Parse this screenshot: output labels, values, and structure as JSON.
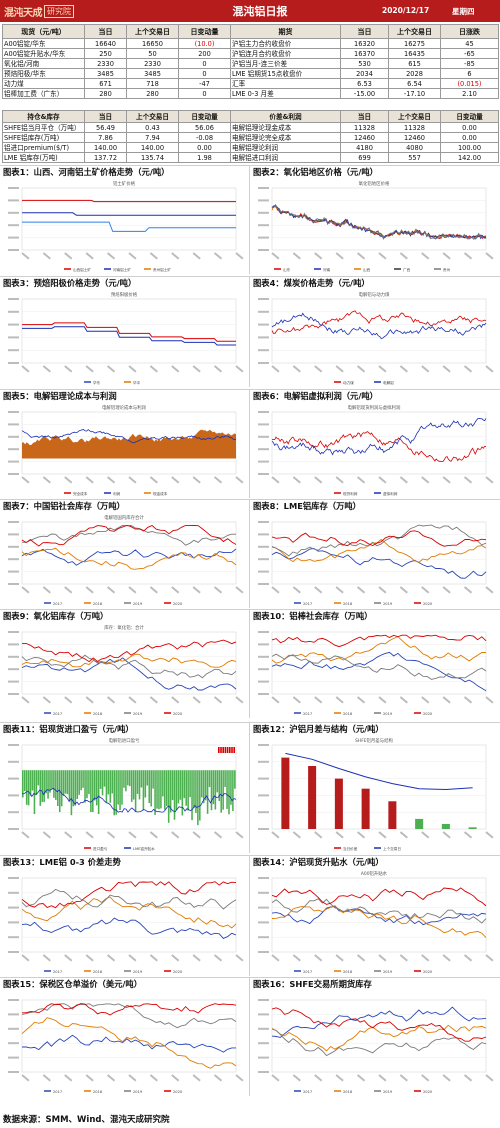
{
  "header": {
    "logo_text": "混沌天成",
    "logo_badge": "研究院",
    "title": "混沌铝日报",
    "date": "2020/12/17",
    "weekday": "星期四"
  },
  "spot_table": {
    "headers": [
      "现货（元/吨）",
      "当日",
      "上个交易日",
      "日变动量",
      "期货",
      "当日",
      "上个交易日",
      "日涨跌"
    ],
    "rows": [
      [
        "A00铝锭/华东",
        "16640",
        "16650",
        "(10.0)",
        "沪铝主力合约收盘价",
        "16320",
        "16275",
        "45"
      ],
      [
        "A00铝锭升贴水/华东",
        "250",
        "50",
        "200",
        "沪铝连月合约收盘价",
        "16370",
        "16435",
        "-65"
      ],
      [
        "氧化铝/河南",
        "2330",
        "2330",
        "0",
        "沪铝当月-连三价差",
        "530",
        "615",
        "-85"
      ],
      [
        "预焙阳极/华东",
        "3485",
        "3485",
        "0",
        "LME 铝期货15点收盘价",
        "2034",
        "2028",
        "6"
      ],
      [
        "动力煤",
        "671",
        "718",
        "-47",
        "汇率",
        "6.53",
        "6.54",
        "(0.015)"
      ],
      [
        "铝棒加工费（广东）",
        "280",
        "280",
        "0",
        "LME 0-3 月差",
        "-15.00",
        "-17.10",
        "2.10"
      ]
    ]
  },
  "stock_table": {
    "headers": [
      "持仓&库存",
      "当日",
      "上个交易日",
      "日变动量",
      "价差&利润",
      "当日",
      "上个交易日",
      "日变动量"
    ],
    "rows": [
      [
        "SHFE铝当月平仓（万吨）",
        "56.49",
        "0.43",
        "56.06",
        "电解铝理论现金成本",
        "11328",
        "11328",
        "0.00"
      ],
      [
        "SHFE铝库存(万吨)",
        "7.86",
        "7.94",
        "-0.08",
        "电解铝理论完全成本",
        "12460",
        "12460",
        "0.00"
      ],
      [
        "铝进口premium($/T)",
        "140.00",
        "140.00",
        "0.00",
        "电解铝理论利润",
        "4180",
        "4080",
        "100.00"
      ],
      [
        "LME 铝库存(万吨)",
        "137.72",
        "135.74",
        "1.98",
        "电解铝进口利润",
        "699",
        "557",
        "142.00"
      ]
    ]
  },
  "charts": [
    {
      "label": "图表1：山西、河南铝土矿价格走势（元/吨）",
      "subtitle": "铝土矿价格",
      "legend": [
        "山西铝土矿",
        "河南铝土矿",
        "贵州铝土矿"
      ]
    },
    {
      "label": "图表2：氧化铝地区价格（元/吨）",
      "subtitle": "氧化铝地区价格",
      "legend": [
        "山东",
        "河南",
        "山西",
        "广西",
        "贵州"
      ]
    },
    {
      "label": "图表3：预焙阳极价格走势（元/吨）",
      "subtitle": "预焙阳极价格",
      "legend": [
        "华东",
        "华中"
      ]
    },
    {
      "label": "图表4：煤炭价格走势（元/吨）",
      "subtitle": "电解铝与动力煤",
      "legend": [
        "动力煤",
        "电解铝"
      ]
    },
    {
      "label": "图表5：电解铝理论成本与利润",
      "subtitle": "电解铝理论成本与利润",
      "legend": [
        "完全成本",
        "利润",
        "现金成本"
      ]
    },
    {
      "label": "图表6：电解铝虚拟利润（元/吨）",
      "subtitle": "电解铝现货利润与虚拟利润",
      "legend": [
        "现货利润",
        "虚拟利润"
      ]
    },
    {
      "label": "图表7：中国铝社会库存（万吨）",
      "subtitle": "电解铝国内库存合计",
      "legend": [
        "2017",
        "2018",
        "2019",
        "2020"
      ]
    },
    {
      "label": "图表8：LME铝库存（万吨）",
      "subtitle": "",
      "legend": [
        "2017",
        "2018",
        "2019",
        "2020"
      ]
    },
    {
      "label": "图表9：氧化铝库存（万吨）",
      "subtitle": "库存：氧化铝：合计",
      "legend": [
        "2017",
        "2018",
        "2019",
        "2020"
      ]
    },
    {
      "label": "图表10：铝棒社会库存（万吨）",
      "subtitle": "",
      "legend": [
        "2017",
        "2018",
        "2019",
        "2020"
      ]
    },
    {
      "label": "图表11：铝现货进口盈亏（元/吨）",
      "subtitle": "电解铝进口盈亏",
      "legend": [
        "进口盈亏",
        "LME铝升贴水"
      ]
    },
    {
      "label": "图表12：沪铝月差与结构（元/吨）",
      "subtitle": "SHFE铝月差与结构",
      "legend": [
        "当日价差",
        "上个交易日"
      ]
    },
    {
      "label": "图表13：LME铝 0-3 价差走势",
      "subtitle": "",
      "legend": [
        "2017",
        "2018",
        "2019",
        "2020"
      ]
    },
    {
      "label": "图表14：沪铝现货升贴水（元/吨）",
      "subtitle": "A00铝升贴水",
      "legend": [
        "2017",
        "2018",
        "2019",
        "2020"
      ]
    },
    {
      "label": "图表15：保税区仓单溢价（美元/吨）",
      "subtitle": "",
      "legend": [
        "2017",
        "2018",
        "2019",
        "2020"
      ]
    },
    {
      "label": "图表16：SHFE交易所期货库存",
      "subtitle": "",
      "legend": [
        "2017",
        "2018",
        "2019",
        "2020"
      ]
    }
  ],
  "footer": {
    "source": "数据来源：SMM、Wind、混沌天成研究院"
  },
  "colors": {
    "brand_red": "#b71c1c",
    "y2017": "#2a45b8",
    "y2018": "#e07b00",
    "y2019": "#7a7a7a",
    "y2020": "#d80000",
    "green": "#4caf50"
  }
}
